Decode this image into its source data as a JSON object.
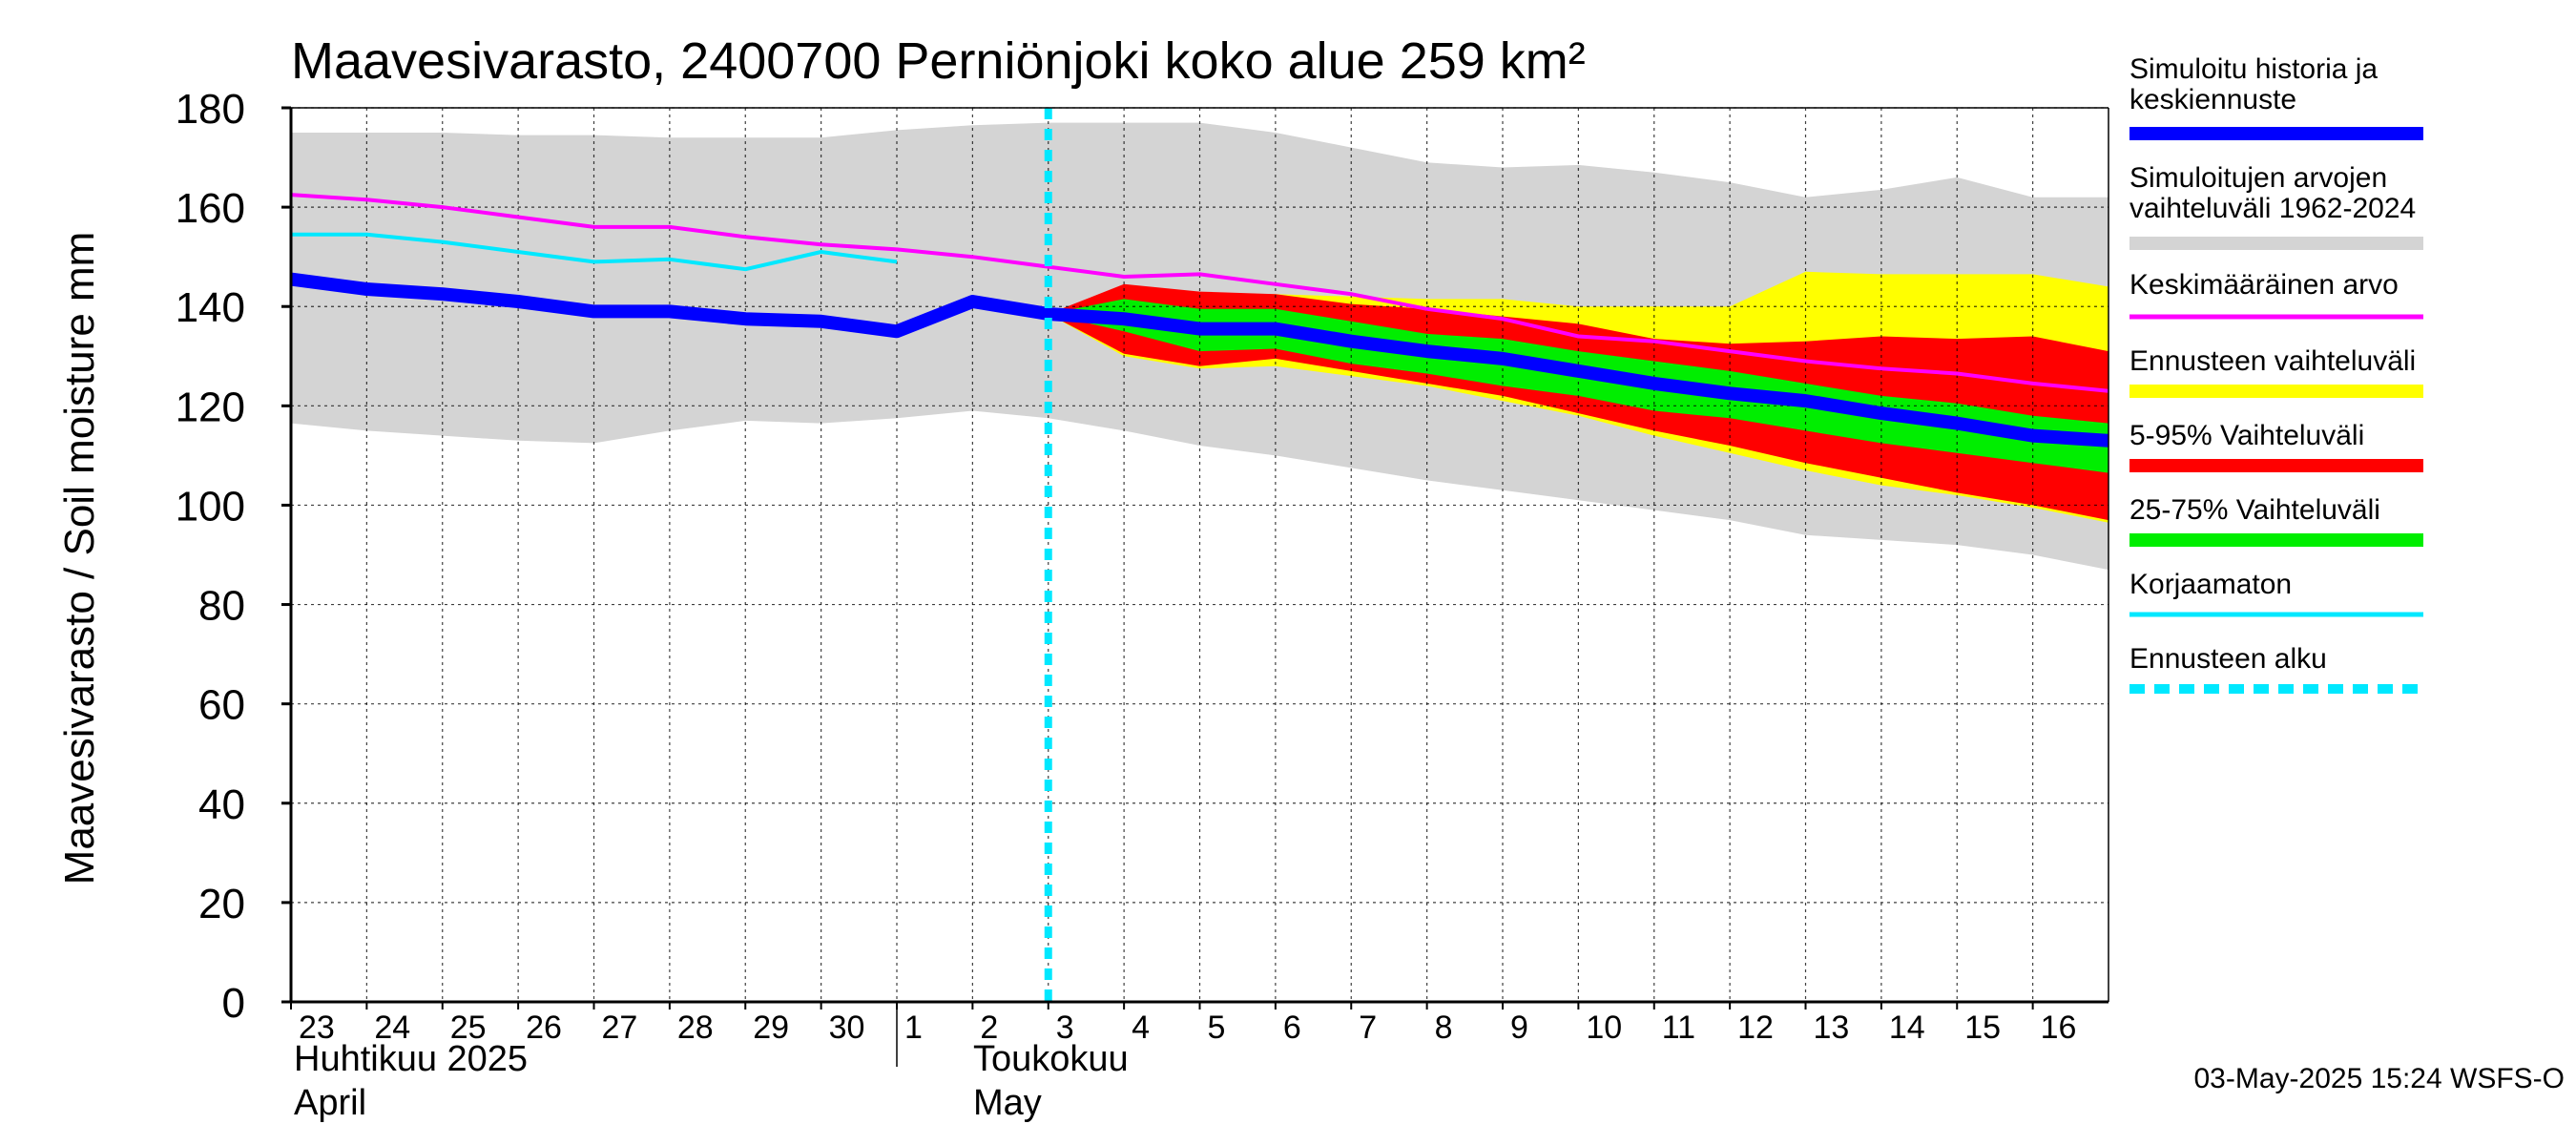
{
  "chart_data": {
    "type": "area",
    "title": "Maavesivarasto, 2400700 Perniönjoki koko alue 259 km²",
    "ylabel": "Maavesivarasto / Soil moisture   mm",
    "ylim": [
      0,
      180
    ],
    "yticks": [
      0,
      20,
      40,
      60,
      80,
      100,
      120,
      140,
      160,
      180
    ],
    "xlim": [
      23,
      47
    ],
    "day_ticks": [
      {
        "x": 23,
        "label": "23"
      },
      {
        "x": 24,
        "label": "24"
      },
      {
        "x": 25,
        "label": "25"
      },
      {
        "x": 26,
        "label": "26"
      },
      {
        "x": 27,
        "label": "27"
      },
      {
        "x": 28,
        "label": "28"
      },
      {
        "x": 29,
        "label": "29"
      },
      {
        "x": 30,
        "label": "30"
      },
      {
        "x": 31,
        "label": "1"
      },
      {
        "x": 32,
        "label": "2"
      },
      {
        "x": 33,
        "label": "3"
      },
      {
        "x": 34,
        "label": "4"
      },
      {
        "x": 35,
        "label": "5"
      },
      {
        "x": 36,
        "label": "6"
      },
      {
        "x": 37,
        "label": "7"
      },
      {
        "x": 38,
        "label": "8"
      },
      {
        "x": 39,
        "label": "9"
      },
      {
        "x": 40,
        "label": "10"
      },
      {
        "x": 41,
        "label": "11"
      },
      {
        "x": 42,
        "label": "12"
      },
      {
        "x": 43,
        "label": "13"
      },
      {
        "x": 44,
        "label": "14"
      },
      {
        "x": 45,
        "label": "15"
      },
      {
        "x": 46,
        "label": "16"
      }
    ],
    "month_boundary_x": 31,
    "month_labels": {
      "april_fi": "Huhtikuu  2025",
      "april_en": "April",
      "may_fi": "Toukokuu",
      "may_en": "May"
    },
    "forecast_start_x": 33,
    "history_range": {
      "x": [
        23,
        24,
        25,
        26,
        27,
        28,
        29,
        30,
        31,
        32,
        33,
        34,
        35,
        36,
        37,
        38,
        39,
        40,
        41,
        42,
        43,
        44,
        45,
        46,
        47
      ],
      "upper": [
        175,
        175,
        175,
        174.5,
        174.5,
        174,
        174,
        174,
        175.5,
        176.5,
        177,
        177,
        177,
        175,
        172,
        169,
        168,
        168.5,
        167,
        165,
        162,
        163.5,
        166,
        162,
        162
      ],
      "lower": [
        116.5,
        115,
        114,
        113,
        112.5,
        115,
        117,
        116.5,
        117.5,
        119,
        117.5,
        115,
        112,
        110,
        107.5,
        105,
        103,
        101,
        99,
        97,
        94,
        93,
        92,
        90,
        87
      ]
    },
    "forecast_range": {
      "x": [
        33,
        34,
        35,
        36,
        37,
        38,
        39,
        40,
        41,
        42,
        43,
        44,
        45,
        46,
        47
      ],
      "upper": [
        138.5,
        143.5,
        142.5,
        142.5,
        142,
        141.5,
        141.5,
        140,
        140,
        140,
        147,
        146.5,
        146.5,
        146.5,
        144
      ],
      "lower": [
        138.5,
        130,
        127.5,
        128,
        126,
        124,
        121,
        118,
        114,
        110.5,
        107,
        104,
        102,
        99.5,
        96.5
      ]
    },
    "band_5_95": {
      "x": [
        33,
        34,
        35,
        36,
        37,
        38,
        39,
        40,
        41,
        42,
        43,
        44,
        45,
        46,
        47
      ],
      "upper": [
        138.5,
        144.5,
        143,
        142.5,
        140.5,
        139.5,
        138,
        136.5,
        133.5,
        132.5,
        133,
        134,
        133.5,
        134,
        131
      ],
      "lower": [
        138.5,
        130.5,
        128,
        129.5,
        127,
        124.5,
        122,
        118.5,
        115,
        112,
        108.5,
        105.5,
        102.5,
        100,
        97
      ]
    },
    "band_25_75": {
      "x": [
        33,
        34,
        35,
        36,
        37,
        38,
        39,
        40,
        41,
        42,
        43,
        44,
        45,
        46,
        47
      ],
      "upper": [
        138.5,
        141.5,
        139.5,
        139.5,
        137,
        134.5,
        133.5,
        131,
        129,
        127,
        124.5,
        122,
        120.5,
        118,
        116.5
      ],
      "lower": [
        138.5,
        135,
        131,
        131.5,
        128.5,
        126.5,
        124,
        122,
        119,
        117.5,
        115,
        112.5,
        110.5,
        108.5,
        106.5
      ]
    },
    "series": [
      {
        "name": "Keskimääräinen arvo",
        "color": "#ff00ff",
        "x": [
          23,
          24,
          25,
          26,
          27,
          28,
          29,
          30,
          31,
          32,
          33,
          34,
          35,
          36,
          37,
          38,
          39,
          40,
          41,
          42,
          43,
          44,
          45,
          46,
          47
        ],
        "y": [
          162.5,
          161.5,
          160,
          158,
          156,
          156,
          154,
          152.5,
          151.5,
          150,
          148,
          146,
          146.5,
          144.5,
          142.5,
          139.5,
          137.5,
          134,
          133,
          131,
          129,
          127.5,
          126.5,
          124.5,
          123
        ]
      },
      {
        "name": "Korjaamaton",
        "color": "#00e8ff",
        "x": [
          23,
          24,
          25,
          26,
          27,
          28,
          29,
          30,
          31
        ],
        "y": [
          154.5,
          154.5,
          153,
          151,
          149,
          149.5,
          147.5,
          151,
          149
        ]
      },
      {
        "name": "Simuloitu historia ja keskiennuste",
        "color": "#0000ff",
        "x": [
          23,
          24,
          25,
          26,
          27,
          28,
          29,
          30,
          31,
          32,
          33,
          34,
          35,
          36,
          37,
          38,
          39,
          40,
          41,
          42,
          43,
          44,
          45,
          46,
          47
        ],
        "y": [
          145.5,
          143.5,
          142.5,
          141,
          139,
          139,
          137.5,
          137,
          135,
          141,
          138.5,
          137.5,
          135.5,
          135.5,
          133,
          131,
          129.5,
          127,
          124.5,
          122.5,
          121,
          118.5,
          116.5,
          114,
          113
        ]
      }
    ],
    "legend": [
      {
        "label": "Simuloitu historia ja keskiennuste",
        "color": "#0000ff",
        "kind": "thick-line"
      },
      {
        "label": "Simuloitujen arvojen vaihteluväli 1962-2024",
        "color": "#d4d4d4",
        "kind": "thick-line"
      },
      {
        "label": "Keskimääräinen arvo",
        "color": "#ff00ff",
        "kind": "line"
      },
      {
        "label": "Ennusteen vaihteluväli",
        "color": "#ffff00",
        "kind": "thick-line"
      },
      {
        "label": "5-95% Vaihteluväli",
        "color": "#ff0000",
        "kind": "thick-line"
      },
      {
        "label": "25-75% Vaihteluväli",
        "color": "#00ee00",
        "kind": "thick-line"
      },
      {
        "label": "Korjaamaton",
        "color": "#00e8ff",
        "kind": "line"
      },
      {
        "label": "Ennusteen alku",
        "color": "#00e8ff",
        "kind": "dashed"
      }
    ],
    "legend_position": "right",
    "grid": true
  },
  "timestamp": "03-May-2025 15:24 WSFS-O"
}
